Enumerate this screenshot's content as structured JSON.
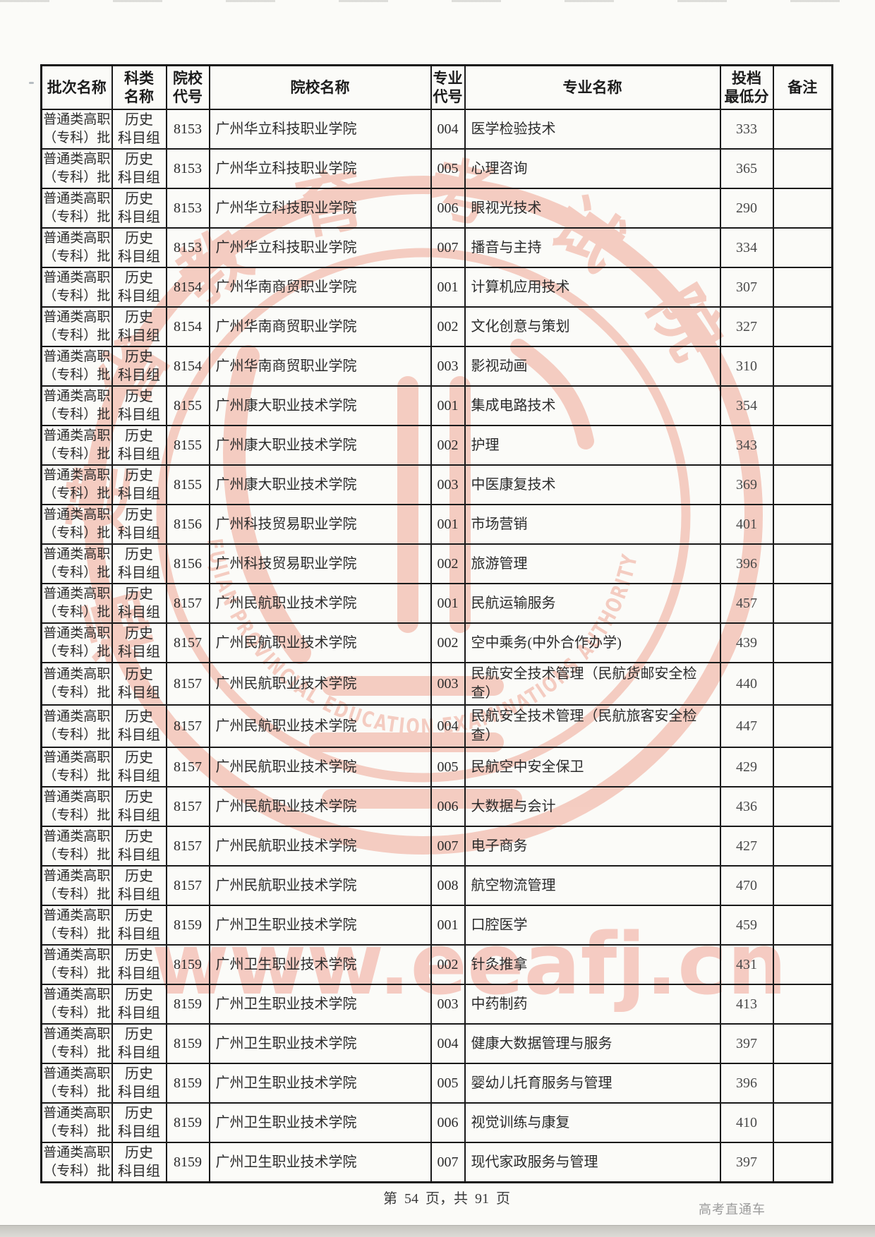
{
  "watermark": {
    "seal_chinese": "福建省教育考试院",
    "seal_english": "FUJIAN PROVINCIAL EDUCATION EXAMINATIONS AUTHORITY",
    "url": "www.eeafj.cn",
    "color": "#ef9f8c"
  },
  "table": {
    "headers": [
      "批次名称",
      "科类\n名称",
      "院校\n代号",
      "院校名称",
      "专业\n代号",
      "专业名称",
      "投档\n最低分",
      "备注"
    ],
    "batch_name": "普通类高职\n（专科）批",
    "subject_group": "历史\n科目组",
    "rows": [
      [
        "8153",
        "广州华立科技职业学院",
        "004",
        "医学检验技术",
        "333",
        ""
      ],
      [
        "8153",
        "广州华立科技职业学院",
        "005",
        "心理咨询",
        "365",
        ""
      ],
      [
        "8153",
        "广州华立科技职业学院",
        "006",
        "眼视光技术",
        "290",
        ""
      ],
      [
        "8153",
        "广州华立科技职业学院",
        "007",
        "播音与主持",
        "334",
        ""
      ],
      [
        "8154",
        "广州华南商贸职业学院",
        "001",
        "计算机应用技术",
        "307",
        ""
      ],
      [
        "8154",
        "广州华南商贸职业学院",
        "002",
        "文化创意与策划",
        "327",
        ""
      ],
      [
        "8154",
        "广州华南商贸职业学院",
        "003",
        "影视动画",
        "310",
        ""
      ],
      [
        "8155",
        "广州康大职业技术学院",
        "001",
        "集成电路技术",
        "354",
        ""
      ],
      [
        "8155",
        "广州康大职业技术学院",
        "002",
        "护理",
        "343",
        ""
      ],
      [
        "8155",
        "广州康大职业技术学院",
        "003",
        "中医康复技术",
        "369",
        ""
      ],
      [
        "8156",
        "广州科技贸易职业学院",
        "001",
        "市场营销",
        "401",
        ""
      ],
      [
        "8156",
        "广州科技贸易职业学院",
        "002",
        "旅游管理",
        "396",
        ""
      ],
      [
        "8157",
        "广州民航职业技术学院",
        "001",
        "民航运输服务",
        "457",
        ""
      ],
      [
        "8157",
        "广州民航职业技术学院",
        "002",
        "空中乘务(中外合作办学)",
        "439",
        ""
      ],
      [
        "8157",
        "广州民航职业技术学院",
        "003",
        "民航安全技术管理（民航货邮安全检查）",
        "440",
        ""
      ],
      [
        "8157",
        "广州民航职业技术学院",
        "004",
        "民航安全技术管理（民航旅客安全检查）",
        "447",
        ""
      ],
      [
        "8157",
        "广州民航职业技术学院",
        "005",
        "民航空中安全保卫",
        "429",
        ""
      ],
      [
        "8157",
        "广州民航职业技术学院",
        "006",
        "大数据与会计",
        "436",
        ""
      ],
      [
        "8157",
        "广州民航职业技术学院",
        "007",
        "电子商务",
        "427",
        ""
      ],
      [
        "8157",
        "广州民航职业技术学院",
        "008",
        "航空物流管理",
        "470",
        ""
      ],
      [
        "8159",
        "广州卫生职业技术学院",
        "001",
        "口腔医学",
        "459",
        ""
      ],
      [
        "8159",
        "广州卫生职业技术学院",
        "002",
        "针灸推拿",
        "431",
        ""
      ],
      [
        "8159",
        "广州卫生职业技术学院",
        "003",
        "中药制药",
        "413",
        ""
      ],
      [
        "8159",
        "广州卫生职业技术学院",
        "004",
        "健康大数据管理与服务",
        "397",
        ""
      ],
      [
        "8159",
        "广州卫生职业技术学院",
        "005",
        "婴幼儿托育服务与管理",
        "396",
        ""
      ],
      [
        "8159",
        "广州卫生职业技术学院",
        "006",
        "视觉训练与康复",
        "410",
        ""
      ],
      [
        "8159",
        "广州卫生职业技术学院",
        "007",
        "现代家政服务与管理",
        "397",
        ""
      ]
    ]
  },
  "footer": {
    "page_text": "第 54 页，共 91 页",
    "brand": "高考直通车"
  }
}
